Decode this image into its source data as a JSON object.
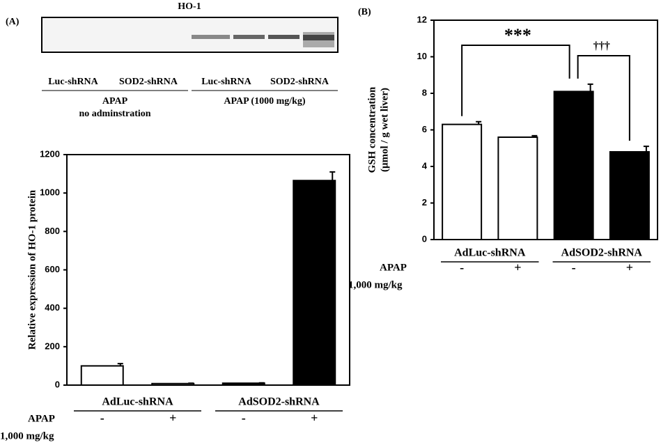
{
  "panels": [
    "(A)",
    "(B)"
  ],
  "blot": {
    "title": "HO-1",
    "lanes": [
      "Luc-shRNA",
      "SOD2-shRNA",
      "Luc-shRNA",
      "SOD2-shRNA"
    ],
    "groups": [
      [
        "APAP",
        "no adminstration"
      ],
      [
        "APAP (1000 mg/kg)"
      ]
    ]
  },
  "chart_data": [
    {
      "type": "bar",
      "ylabel": [
        "Relative expression of HO-1 protein"
      ],
      "categories": [
        "-",
        "+",
        "-",
        "+"
      ],
      "groups": [
        "AdLuc-shRNA",
        "AdSOD2-shRNA"
      ],
      "row_label": [
        "APAP",
        "1,000 mg/kg"
      ],
      "values": [
        100,
        8,
        10,
        1065
      ],
      "errors": [
        12,
        2,
        2,
        45
      ],
      "colors": [
        "#ffffff",
        "#ffffff",
        "#000000",
        "#000000"
      ],
      "ylim": [
        0,
        1200
      ],
      "yticks": [
        0,
        200,
        400,
        600,
        800,
        1000,
        1200
      ]
    },
    {
      "type": "bar",
      "ylabel": [
        "GSH concentration",
        "(μmol / g wet liver)"
      ],
      "categories": [
        "-",
        "+",
        "-",
        "+"
      ],
      "groups": [
        "AdLuc-shRNA",
        "AdSOD2-shRNA"
      ],
      "row_label": [
        "APAP",
        "1,000 mg/kg"
      ],
      "values": [
        6.3,
        5.6,
        8.1,
        4.8
      ],
      "errors": [
        0.15,
        0.08,
        0.4,
        0.3
      ],
      "colors": [
        "#ffffff",
        "#ffffff",
        "#000000",
        "#000000"
      ],
      "ylim": [
        0,
        12
      ],
      "yticks": [
        0,
        2,
        4,
        6,
        8,
        10,
        12
      ],
      "annotations": [
        "***",
        "†††"
      ]
    }
  ]
}
